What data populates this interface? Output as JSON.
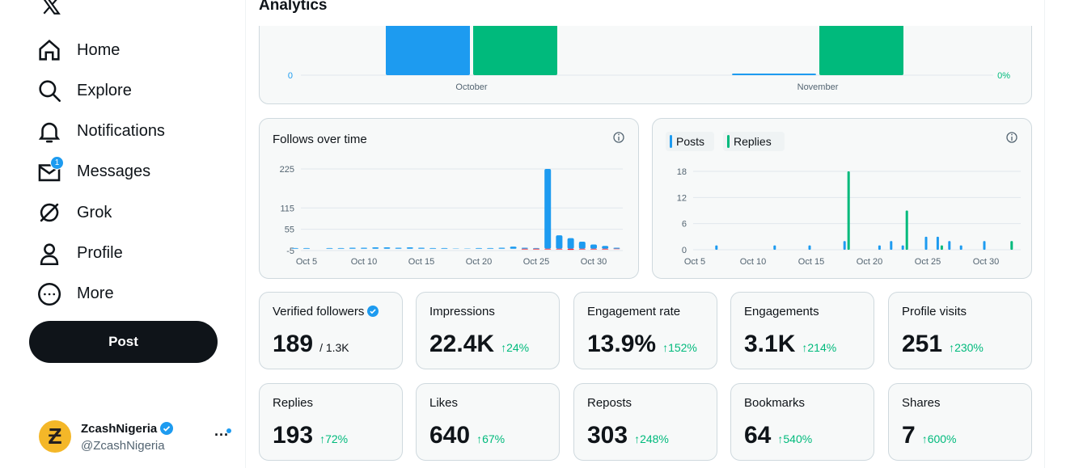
{
  "sidebar": {
    "nav": [
      {
        "label": "Home"
      },
      {
        "label": "Explore"
      },
      {
        "label": "Notifications"
      },
      {
        "label": "Messages",
        "badge": "1"
      },
      {
        "label": "Grok"
      },
      {
        "label": "Profile"
      },
      {
        "label": "More"
      }
    ],
    "post_button": "Post",
    "account": {
      "name": "ZcashNigeria",
      "handle": "@ZcashNigeria"
    }
  },
  "header": {
    "title": "Analytics"
  },
  "overview_chart": {
    "type": "bar",
    "categories": [
      "October",
      "November"
    ],
    "series": [
      {
        "color": "#1d9bf0",
        "values": [
          30,
          0
        ]
      },
      {
        "color": "#00ba7c",
        "axis": "y2",
        "values": [
          30,
          30
        ]
      }
    ],
    "ylim": [
      0,
      40
    ],
    "yticks": [
      0
    ],
    "y2lim": [
      0,
      40
    ],
    "y2ticks": [
      {
        "value": 0,
        "label": "0%"
      }
    ]
  },
  "follows_chart": {
    "type": "bar",
    "title": "Follows over time",
    "categories": [
      null,
      "Oct 5",
      null,
      null,
      null,
      null,
      "Oct 10",
      null,
      null,
      null,
      null,
      "Oct 15",
      null,
      null,
      null,
      null,
      "Oct 20",
      null,
      null,
      null,
      null,
      "Oct 25",
      null,
      null,
      null,
      null,
      "Oct 30",
      null,
      null
    ],
    "series": [
      {
        "color": "#1d9bf0",
        "values": [
          2,
          2,
          0,
          2,
          2,
          3,
          3,
          4,
          4,
          3,
          4,
          3,
          2,
          2,
          1,
          1,
          2,
          2,
          3,
          6,
          3,
          2,
          225,
          38,
          30,
          20,
          12,
          8,
          3
        ]
      },
      {
        "color": "#f4212e",
        "values": [
          0,
          0,
          0,
          0,
          0,
          0,
          0,
          0,
          0,
          0,
          0,
          0,
          0,
          0,
          0,
          0,
          0,
          0,
          0,
          0,
          -2,
          -2,
          -2,
          -2,
          -3,
          -2,
          -2,
          -2,
          -1
        ]
      }
    ],
    "ylim": [
      -5,
      225
    ],
    "yticks": [
      -5,
      55,
      115,
      225
    ],
    "grid": true
  },
  "activity_chart": {
    "type": "bar",
    "categories": [
      null,
      "Oct 5",
      null,
      null,
      null,
      null,
      "Oct 10",
      null,
      null,
      null,
      null,
      "Oct 15",
      null,
      null,
      null,
      null,
      "Oct 20",
      null,
      null,
      null,
      null,
      "Oct 25",
      null,
      null,
      null,
      null,
      "Oct 30",
      null,
      null
    ],
    "series": [
      {
        "name": "Posts",
        "color": "#1d9bf0",
        "values": [
          0,
          0,
          0,
          1,
          0,
          0,
          0,
          0,
          1,
          0,
          0,
          1,
          0,
          0,
          2,
          0,
          0,
          1,
          2,
          1,
          0,
          3,
          3,
          2,
          1,
          0,
          2,
          0,
          0
        ]
      },
      {
        "name": "Replies",
        "color": "#00ba7c",
        "values": [
          0,
          0,
          0,
          0,
          0,
          0,
          0,
          0,
          0,
          0,
          0,
          0,
          0,
          0,
          18,
          0,
          0,
          0,
          0,
          9,
          0,
          0,
          1,
          0,
          0,
          0,
          0,
          0,
          2
        ]
      }
    ],
    "ylim": [
      0,
      18
    ],
    "yticks": [
      0,
      6,
      12,
      18
    ],
    "grid": true
  },
  "cards": [
    {
      "label": "Verified followers",
      "value": "189",
      "total": "/ 1.3K"
    },
    {
      "label": "Impressions",
      "value": "22.4K",
      "change": "24%"
    },
    {
      "label": "Engagement rate",
      "value": "13.9%",
      "change": "152%"
    },
    {
      "label": "Engagements",
      "value": "3.1K",
      "change": "214%"
    },
    {
      "label": "Profile visits",
      "value": "251",
      "change": "230%"
    },
    {
      "label": "Replies",
      "value": "193",
      "change": "72%"
    },
    {
      "label": "Likes",
      "value": "640",
      "change": "67%"
    },
    {
      "label": "Reposts",
      "value": "303",
      "change": "248%"
    },
    {
      "label": "Bookmarks",
      "value": "64",
      "change": "540%"
    },
    {
      "label": "Shares",
      "value": "7",
      "change": "600%"
    }
  ]
}
